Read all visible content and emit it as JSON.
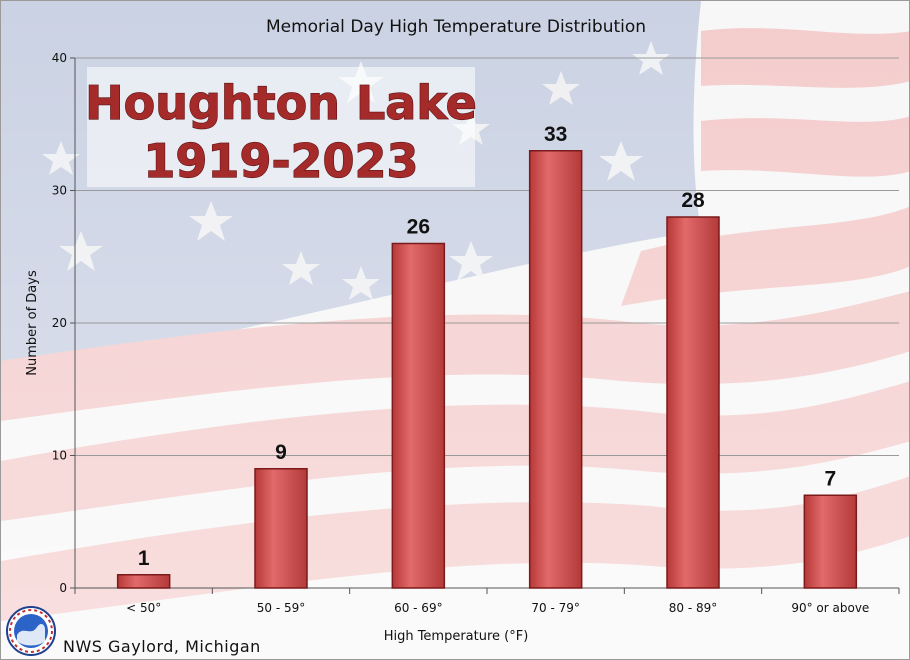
{
  "chart_data": {
    "type": "bar",
    "title": "Memorial Day High Temperature Distribution",
    "overlay_title": [
      "Houghton Lake",
      "1919-2023"
    ],
    "xlabel": "High Temperature (°F)",
    "ylabel": "Number of Days",
    "categories": [
      "< 50°",
      "50 - 59°",
      "60 - 69°",
      "70 - 79°",
      "80 - 89°",
      "90° or above"
    ],
    "values": [
      1,
      9,
      26,
      33,
      28,
      7
    ],
    "ylim": [
      0,
      40
    ],
    "yticks": [
      0,
      10,
      20,
      30,
      40
    ],
    "grid": true,
    "bar_color": "#cc4f4f",
    "bar_edge_color": "#7a1a1a"
  },
  "footer": {
    "credit": "NWS Gaylord, Michigan",
    "logo_icon": "nws-logo-icon"
  },
  "colors": {
    "flag_red": "#f3c9c9",
    "flag_blue": "#b9c3d8",
    "title_red": "#a52a2a"
  }
}
